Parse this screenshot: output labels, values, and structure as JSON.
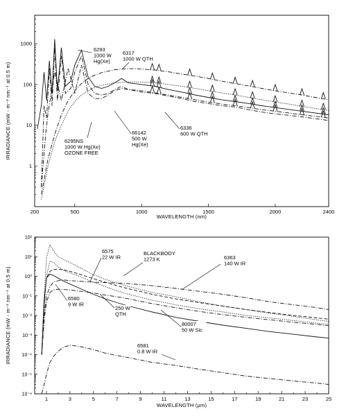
{
  "chart_data": [
    {
      "type": "line",
      "xlabel": "WAVELENGTH (nm)",
      "ylabel": "IRRADIANCE (mW - m⁻² nm⁻¹ at 0.5 m)",
      "xlim": [
        200,
        2400
      ],
      "ylim": [
        0.1,
        5000
      ],
      "y_scale": "log",
      "x_ticks": [
        200,
        500,
        1000,
        1500,
        2000,
        2400
      ],
      "y_ticks": [
        {
          "value": 1,
          "label": "1"
        },
        {
          "value": 10,
          "label": "10"
        },
        {
          "value": 100,
          "label": "100"
        },
        {
          "value": 1000,
          "label": "1000"
        }
      ],
      "grid": false,
      "series": [
        {
          "name": "6293",
          "style": "solid",
          "x": [
            220,
            250,
            270,
            290,
            310,
            330,
            350,
            370,
            400,
            430,
            470,
            500,
            550,
            600,
            650,
            700,
            750,
            800,
            850,
            900,
            1000,
            1100,
            1200,
            1300,
            1400,
            1500,
            1600,
            1700,
            1800,
            1900,
            2000,
            2200,
            2400
          ],
          "y": [
            8,
            30,
            200,
            40,
            380,
            60,
            1300,
            70,
            800,
            90,
            120,
            300,
            700,
            150,
            90,
            80,
            90,
            110,
            140,
            110,
            100,
            90,
            75,
            65,
            55,
            48,
            42,
            38,
            34,
            30,
            27,
            22,
            18
          ]
        },
        {
          "name": "6295NS",
          "style": "dashdot",
          "x": [
            250,
            270,
            290,
            310,
            330,
            350,
            370,
            400,
            430,
            470,
            500,
            550,
            600,
            650,
            700,
            750,
            800,
            850,
            900,
            1000,
            1100,
            1200,
            1300,
            1400,
            1500,
            1600,
            1700,
            1800,
            1900,
            2000,
            2200,
            2400
          ],
          "y": [
            0.3,
            30,
            15,
            250,
            30,
            800,
            40,
            500,
            60,
            80,
            200,
            500,
            100,
            60,
            55,
            60,
            75,
            90,
            75,
            65,
            60,
            52,
            45,
            38,
            34,
            30,
            28,
            24,
            21,
            19,
            16,
            13
          ]
        },
        {
          "name": "6317",
          "style": "dashdot",
          "x": [
            250,
            300,
            350,
            400,
            450,
            500,
            550,
            600,
            650,
            700,
            800,
            900,
            1000,
            1100,
            1200,
            1300,
            1400,
            1500,
            1600,
            1700,
            1800,
            1900,
            2000,
            2100,
            2200,
            2300,
            2400
          ],
          "y": [
            0.2,
            1.5,
            6,
            18,
            40,
            70,
            105,
            140,
            170,
            195,
            230,
            245,
            240,
            225,
            205,
            180,
            160,
            140,
            120,
            105,
            92,
            80,
            70,
            62,
            55,
            48,
            42
          ]
        },
        {
          "name": "66142",
          "style": "dashdot",
          "x": [
            250,
            280,
            300,
            350,
            400,
            450,
            500,
            550,
            600,
            650,
            700,
            750,
            800,
            850,
            900,
            1000,
            1100,
            1200,
            1300,
            1400,
            1500,
            1600,
            1700,
            1800,
            1900,
            2000,
            2200,
            2400
          ],
          "y": [
            0.3,
            5,
            20,
            200,
            40,
            250,
            60,
            300,
            60,
            45,
            45,
            55,
            70,
            80,
            75,
            70,
            62,
            55,
            48,
            42,
            37,
            33,
            30,
            27,
            24,
            22,
            18,
            15
          ]
        },
        {
          "name": "6336",
          "style": "dotted",
          "x": [
            250,
            300,
            350,
            400,
            450,
            500,
            550,
            600,
            650,
            700,
            800,
            900,
            1000,
            1100,
            1200,
            1300,
            1400,
            1500,
            1600,
            1700,
            1800,
            1900,
            2000,
            2100,
            2200,
            2300,
            2400
          ],
          "y": [
            0.15,
            1,
            4,
            10,
            22,
            38,
            55,
            70,
            85,
            95,
            110,
            115,
            115,
            110,
            100,
            90,
            80,
            70,
            62,
            55,
            48,
            42,
            37,
            33,
            29,
            26,
            23
          ]
        }
      ],
      "peaks_x": [
        1080,
        1130,
        1360,
        1530,
        1700,
        1830,
        2000,
        2200,
        2360
      ],
      "annotations": [
        {
          "lines": [
            "6293",
            "1000 W",
            "Hg(Xe)"
          ]
        },
        {
          "lines": [
            "6317",
            "1000 W QTH"
          ]
        },
        {
          "lines": [
            "66142",
            "500 W",
            "Hg(Xe)"
          ]
        },
        {
          "lines": [
            "6336",
            "600 W QTH"
          ]
        },
        {
          "lines": [
            "6295NS",
            "1000 W Hg(Xe)",
            "OZONE FREE"
          ]
        }
      ]
    },
    {
      "type": "line",
      "xlabel": "WAVELENGTH (µm)",
      "ylabel": "IRRADIANCE (mW - m⁻² nm⁻¹ at 0.5 m)",
      "xlim": [
        0,
        25
      ],
      "ylim": [
        1e-06,
        100
      ],
      "y_scale": "log",
      "x_ticks": [
        1,
        3,
        5,
        7,
        9,
        11,
        13,
        15,
        17,
        19,
        21,
        23,
        25
      ],
      "y_ticks": [
        {
          "value": 1e-06,
          "label": "10⁻⁶"
        },
        {
          "value": 1e-05,
          "label": "10⁻⁵"
        },
        {
          "value": 0.0001,
          "label": "10⁻⁴"
        },
        {
          "value": 0.001,
          "label": "10⁻³"
        },
        {
          "value": 0.01,
          "label": "10⁻²"
        },
        {
          "value": 0.1,
          "label": "10⁻¹"
        },
        {
          "value": 1,
          "label": "10⁰"
        },
        {
          "value": 10,
          "label": "10¹"
        },
        {
          "value": 100,
          "label": "10²"
        }
      ],
      "grid": false,
      "series": [
        {
          "name": "6575",
          "style": "dotted",
          "x": [
            0.6,
            0.8,
            1,
            1.3,
            1.6,
            2,
            2.5,
            3,
            4,
            5,
            6,
            7,
            8,
            10,
            12,
            14,
            16,
            18,
            20,
            22,
            24,
            25
          ],
          "y": [
            0.0001,
            0.1,
            8,
            40,
            20,
            10,
            7,
            5,
            2.5,
            1.2,
            0.7,
            0.45,
            0.3,
            0.15,
            0.09,
            0.05,
            0.03,
            0.02,
            0.013,
            0.009,
            0.006,
            0.005
          ]
        },
        {
          "name": "BLACKBODY 1273 K",
          "style": "dashed",
          "x": [
            0.6,
            0.8,
            1,
            1.3,
            1.6,
            2,
            2.5,
            3,
            4,
            5,
            6,
            7,
            8,
            10,
            12,
            14,
            16,
            18,
            20,
            22,
            24,
            25
          ],
          "y": [
            0.0001,
            0.05,
            0.8,
            1.8,
            2.2,
            2.3,
            2.1,
            1.8,
            1.2,
            0.75,
            0.5,
            0.33,
            0.23,
            0.12,
            0.07,
            0.045,
            0.03,
            0.02,
            0.014,
            0.01,
            0.0075,
            0.0065
          ]
        },
        {
          "name": "6363",
          "style": "dashdot",
          "x": [
            0.6,
            0.8,
            1,
            1.3,
            1.6,
            2,
            2.5,
            3,
            4,
            5,
            6,
            7,
            8,
            10,
            12,
            14,
            16,
            18,
            20,
            22,
            24,
            25
          ],
          "y": [
            0.0001,
            0.01,
            0.1,
            0.3,
            0.5,
            0.6,
            0.65,
            0.6,
            0.55,
            0.5,
            0.48,
            0.45,
            0.42,
            0.33,
            0.24,
            0.17,
            0.12,
            0.08,
            0.05,
            0.035,
            0.025,
            0.02
          ]
        },
        {
          "name": "6580",
          "style": "dotted",
          "x": [
            0.6,
            0.8,
            1,
            1.3,
            1.6,
            2,
            2.5,
            3,
            4,
            5,
            6,
            7,
            8,
            10,
            12,
            14,
            16,
            18,
            20,
            22,
            24,
            25
          ],
          "y": [
            0.0001,
            0.02,
            1,
            6,
            5,
            3,
            2,
            1.5,
            0.9,
            0.5,
            0.3,
            0.18,
            0.12,
            0.06,
            0.035,
            0.022,
            0.015,
            0.01,
            0.0075,
            0.0055,
            0.004,
            0.0035
          ]
        },
        {
          "name": "250 W QTH",
          "style": "solid",
          "x": [
            0.6,
            0.8,
            1,
            1.3,
            1.6,
            2,
            2.5,
            3,
            4,
            5,
            6,
            7,
            8,
            10,
            12,
            14,
            16,
            18,
            20,
            22,
            24,
            25
          ],
          "y": [
            0.0001,
            0.05,
            0.8,
            1.3,
            1.1,
            0.8,
            0.55,
            0.4,
            0.22,
            0.12,
            0.07,
            0.045,
            0.03,
            0.015,
            0.008,
            0.005,
            0.0032,
            0.0022,
            0.0015,
            0.0011,
            0.0008,
            0.0007
          ]
        },
        {
          "name": "80007",
          "style": "dashdot",
          "x": [
            0.6,
            0.8,
            1,
            1.3,
            1.6,
            2,
            2.5,
            3,
            4,
            5,
            6,
            7,
            8,
            10,
            12,
            14,
            16,
            18,
            20,
            22,
            24,
            25
          ],
          "y": [
            0.0001,
            0.005,
            0.05,
            0.15,
            0.2,
            0.22,
            0.21,
            0.2,
            0.17,
            0.14,
            0.11,
            0.09,
            0.07,
            0.04,
            0.025,
            0.016,
            0.011,
            0.008,
            0.006,
            0.0045,
            0.0035,
            0.003
          ]
        },
        {
          "name": "6581",
          "style": "dashdot",
          "x": [
            0.6,
            0.8,
            1,
            1.3,
            1.6,
            2,
            2.5,
            3,
            3.5,
            4,
            5,
            6,
            7,
            8,
            10,
            12,
            14,
            16,
            18,
            20,
            22,
            24,
            25
          ],
          "y": [
            1e-06,
            3e-06,
            1e-05,
            4e-05,
            8e-05,
            0.00015,
            0.00025,
            0.0003,
            0.00028,
            0.00025,
            0.00018,
            0.00012,
            9e-05,
            7e-05,
            4e-05,
            2.8e-05,
            1.8e-05,
            1.2e-05,
            8e-06,
            6e-06,
            4.5e-06,
            3.5e-06,
            3e-06
          ]
        }
      ],
      "annotations": [
        {
          "lines": [
            "6575",
            "22 W IR"
          ]
        },
        {
          "lines": [
            "BLACKBODY",
            "1273 K"
          ]
        },
        {
          "lines": [
            "6363",
            "140 W IR"
          ]
        },
        {
          "lines": [
            "6580",
            "9 W IR"
          ]
        },
        {
          "lines": [
            "250 W",
            "QTH"
          ]
        },
        {
          "lines": [
            "80007",
            "50 W Sic"
          ]
        },
        {
          "lines": [
            "6581",
            "0.8 W IR"
          ]
        }
      ]
    }
  ]
}
